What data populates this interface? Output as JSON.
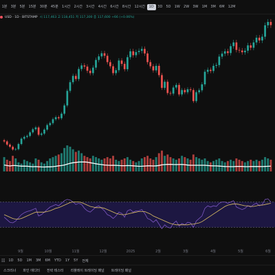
{
  "toolbar": {
    "timeframes": [
      "1분",
      "3분",
      "5분",
      "15분",
      "30분",
      "45분",
      "1시간",
      "2시간",
      "3시간",
      "4시간",
      "6시간",
      "8시간",
      "12시간",
      "1D",
      "3D",
      "5D",
      "1W",
      "2W",
      "3W",
      "1M",
      "3M",
      "6M",
      "12M"
    ],
    "active": "1D"
  },
  "legend": {
    "symbol": "USD · 1D · BITSTAMP",
    "ohlc": "시 117,463  고 118,451  저 117,300  종 117,600  +66 (+0.06%)"
  },
  "chart_data": {
    "type": "candlestick",
    "x_labels": [
      "9월",
      "10월",
      "11월",
      "12월",
      "2025",
      "2월",
      "3월",
      "4월",
      "5월",
      "6월"
    ],
    "series": [
      {
        "name": "price",
        "values": [
          58500,
          56900,
          55800,
          54400,
          54600,
          57200,
          59900,
          60800,
          61300,
          63100,
          64700,
          65600,
          61900,
          62500,
          64500,
          66800,
          67800,
          69800,
          70800,
          70300,
          72600,
          76800,
          84200,
          88600,
          91800,
          90200,
          95300,
          97100,
          96500,
          94400,
          93200,
          96000,
          99900,
          101700,
          103300,
          102000,
          98800,
          96700,
          93200,
          94700,
          99600,
          97900,
          95200,
          101300,
          104300,
          102300,
          103900,
          104500,
          105500,
          103200,
          98800,
          96700,
          94600,
          96900,
          92200,
          85700,
          88800,
          83100,
          82800,
          85900,
          87200,
          82400,
          84600,
          83500,
          85000,
          84600,
          79000,
          83500,
          84500,
          87500,
          93900,
          94900,
          94300,
          96900,
          97300,
          101600,
          103100,
          104300,
          103400,
          106900,
          108800,
          105000,
          104700,
          103800,
          104600,
          107300,
          106100,
          108800,
          111200,
          109800,
          111700,
          117500,
          119200,
          117600
        ]
      },
      {
        "name": "volume",
        "values": [
          0.55,
          0.45,
          0.4,
          0.6,
          0.5,
          0.35,
          0.3,
          0.45,
          0.4,
          0.35,
          0.3,
          0.5,
          0.45,
          0.35,
          0.3,
          0.4,
          0.5,
          0.55,
          0.6,
          0.65,
          0.7,
          0.9,
          1.0,
          0.95,
          0.85,
          0.75,
          0.8,
          0.7,
          0.6,
          0.55,
          0.5,
          0.6,
          0.55,
          0.5,
          0.45,
          0.5,
          0.55,
          0.5,
          0.6,
          0.45,
          0.4,
          0.45,
          0.5,
          0.55,
          0.45,
          0.4,
          0.35,
          0.4,
          0.5,
          0.55,
          0.6,
          0.5,
          0.45,
          0.55,
          0.7,
          0.8,
          0.6,
          0.65,
          0.55,
          0.5,
          0.45,
          0.5,
          0.6,
          0.55,
          0.5,
          0.45,
          0.65,
          0.55,
          0.5,
          0.45,
          0.5,
          0.4,
          0.35,
          0.4,
          0.45,
          0.5,
          0.4,
          0.35,
          0.4,
          0.45,
          0.4,
          0.5,
          0.45,
          0.4,
          0.35,
          0.4,
          0.45,
          0.4,
          0.45,
          0.4,
          0.45,
          0.55,
          0.5,
          0.45
        ]
      },
      {
        "name": "rsi",
        "values": [
          46,
          42,
          38,
          37,
          40,
          45,
          50,
          53,
          55,
          56,
          58,
          60,
          48,
          50,
          54,
          58,
          62,
          64,
          66,
          64,
          68,
          72,
          74,
          73,
          70,
          66,
          68,
          66,
          60,
          56,
          54,
          58,
          62,
          64,
          60,
          56,
          50,
          48,
          44,
          48,
          54,
          52,
          46,
          56,
          58,
          54,
          56,
          56,
          58,
          52,
          44,
          42,
          38,
          42,
          35,
          28,
          34,
          30,
          29,
          36,
          40,
          32,
          36,
          34,
          38,
          37,
          30,
          40,
          44,
          48,
          60,
          64,
          62,
          64,
          63,
          68,
          70,
          70,
          68,
          70,
          72,
          62,
          60,
          58,
          60,
          64,
          62,
          66,
          68,
          64,
          66,
          74,
          75,
          70
        ]
      },
      {
        "name": "rsi-ma",
        "values": [
          50,
          48,
          46,
          44,
          43,
          43,
          44,
          46,
          48,
          50,
          52,
          54,
          54,
          54,
          54,
          55,
          56,
          58,
          60,
          61,
          63,
          65,
          67,
          69,
          70,
          70,
          70,
          69,
          67,
          65,
          63,
          62,
          61,
          61,
          61,
          60,
          58,
          56,
          54,
          52,
          51,
          50,
          50,
          51,
          52,
          53,
          54,
          55,
          55,
          55,
          53,
          51,
          48,
          46,
          44,
          42,
          40,
          38,
          36,
          35,
          34,
          34,
          34,
          34,
          34,
          35,
          35,
          36,
          37,
          39,
          42,
          45,
          48,
          51,
          54,
          57,
          60,
          63,
          65,
          66,
          67,
          67,
          66,
          65,
          64,
          64,
          63,
          63,
          64,
          65,
          65,
          66,
          67,
          68
        ]
      }
    ],
    "rsi_bands": [
      30,
      70
    ],
    "grid": false
  },
  "bottom_bar": {
    "ranges": [
      "1D",
      "5D",
      "1M",
      "3M",
      "6M",
      "YTD",
      "1Y",
      "5Y",
      "전체"
    ]
  },
  "panels": [
    "스크리너",
    "파인 에디터",
    "전략 테스터",
    "리플레이 트레이딩 패널",
    "트레이딩 패널"
  ]
}
